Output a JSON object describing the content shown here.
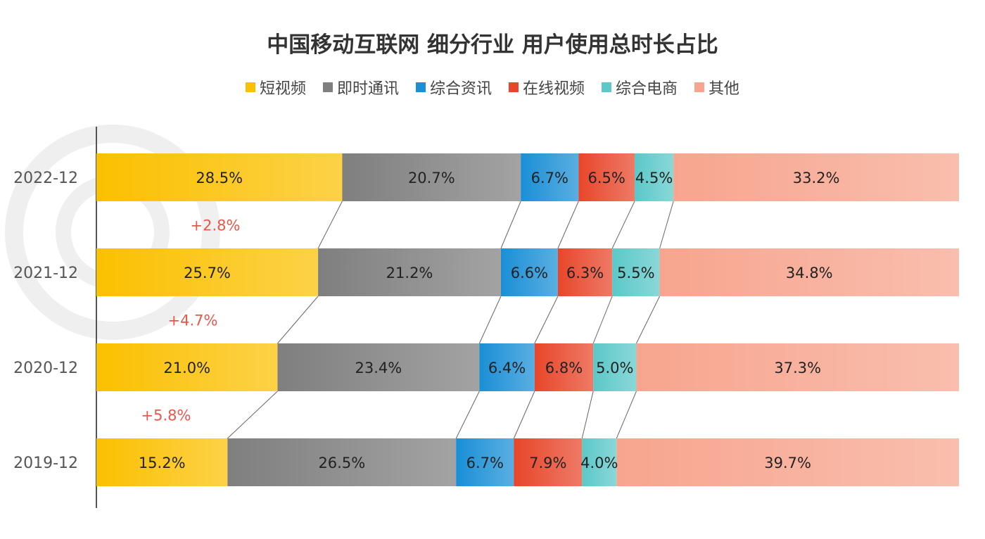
{
  "chart_data": {
    "type": "bar",
    "orientation": "horizontal",
    "stacked": true,
    "title": "中国移动互联网 细分行业 用户使用总时长占比",
    "categories": [
      "2022-12",
      "2021-12",
      "2020-12",
      "2019-12"
    ],
    "series": [
      {
        "name": "短视频",
        "color": "#FBC000",
        "values": [
          28.5,
          25.7,
          21.0,
          15.2
        ],
        "labels": [
          "28.5%",
          "25.7%",
          "21.0%",
          "15.2%"
        ]
      },
      {
        "name": "即时通讯",
        "color": "#7F7F7F",
        "values": [
          20.7,
          21.2,
          23.4,
          26.5
        ],
        "labels": [
          "20.7%",
          "21.2%",
          "23.4%",
          "26.5%"
        ]
      },
      {
        "name": "综合资讯",
        "color": "#1A8FD6",
        "values": [
          6.7,
          6.6,
          6.4,
          6.7
        ],
        "labels": [
          "6.7%",
          "6.6%",
          "6.4%",
          "6.7%"
        ]
      },
      {
        "name": "在线视频",
        "color": "#E8462A",
        "values": [
          6.5,
          6.3,
          6.8,
          7.9
        ],
        "labels": [
          "6.5%",
          "6.3%",
          "6.8%",
          "7.9%"
        ]
      },
      {
        "name": "综合电商",
        "color": "#5CC8C8",
        "values": [
          4.5,
          5.5,
          5.0,
          4.0
        ],
        "labels": [
          "4.5%",
          "5.5%",
          "5.0%",
          "4.0%"
        ]
      },
      {
        "name": "其他",
        "color": "#F7A58E",
        "values": [
          33.2,
          34.8,
          37.3,
          39.7
        ],
        "labels": [
          "33.2%",
          "34.8%",
          "37.3%",
          "39.7%"
        ]
      }
    ],
    "annotations": [
      "+2.8%",
      "+4.7%",
      "+5.8%"
    ],
    "annotation_color": "#E8574A",
    "xlim": [
      0,
      100
    ],
    "grid": false,
    "legend": "top"
  }
}
